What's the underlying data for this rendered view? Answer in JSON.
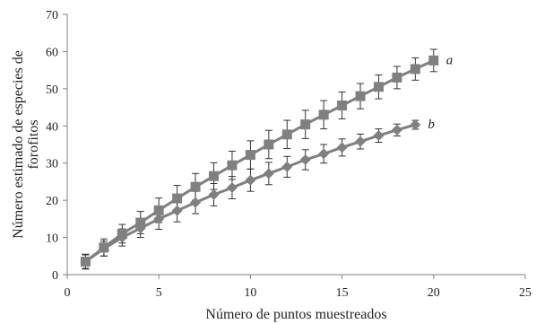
{
  "chart_data": {
    "type": "line",
    "title": "",
    "xlabel": "Número de puntos muestreados",
    "ylabel": [
      "Número estimado de especies de",
      "forofitos"
    ],
    "xlim": [
      0,
      25
    ],
    "ylim": [
      0,
      70
    ],
    "xticks": [
      "0",
      "5",
      "10",
      "15",
      "20",
      "25"
    ],
    "yticks": [
      "0",
      "10",
      "20",
      "30",
      "40",
      "50",
      "60",
      "70"
    ],
    "grid": false,
    "legend": "none",
    "colors": {
      "series": "#808080",
      "axis": "#808080",
      "error": "#333333"
    },
    "series": [
      {
        "name": "a",
        "marker": "square",
        "x": [
          1,
          2,
          3,
          4,
          5,
          6,
          7,
          8,
          9,
          10,
          11,
          12,
          13,
          14,
          15,
          16,
          17,
          18,
          19,
          20
        ],
        "y": [
          3.5,
          7.3,
          11.0,
          14.0,
          17.3,
          20.5,
          23.6,
          26.5,
          29.4,
          32.2,
          35.0,
          37.7,
          40.4,
          43.0,
          45.5,
          48.0,
          50.5,
          53.0,
          55.3,
          57.6
        ],
        "err": [
          2.0,
          2.3,
          2.5,
          3.0,
          3.3,
          3.5,
          3.6,
          3.6,
          3.8,
          3.8,
          3.8,
          3.8,
          3.8,
          3.8,
          3.6,
          3.4,
          3.2,
          3.0,
          3.0,
          3.0
        ]
      },
      {
        "name": "b",
        "marker": "diamond",
        "x": [
          1,
          2,
          3,
          4,
          5,
          6,
          7,
          8,
          9,
          10,
          11,
          12,
          13,
          14,
          15,
          16,
          17,
          18,
          19
        ],
        "y": [
          3.5,
          7.0,
          10.0,
          12.5,
          15.0,
          17.2,
          19.4,
          21.5,
          23.4,
          25.4,
          27.2,
          29.0,
          30.9,
          32.5,
          34.2,
          35.8,
          37.4,
          38.9,
          40.3
        ],
        "err": [
          1.8,
          2.0,
          2.3,
          2.5,
          2.8,
          3.0,
          3.0,
          3.0,
          3.0,
          3.0,
          3.0,
          2.8,
          2.7,
          2.5,
          2.3,
          2.0,
          1.8,
          1.6,
          1.2
        ]
      }
    ]
  }
}
